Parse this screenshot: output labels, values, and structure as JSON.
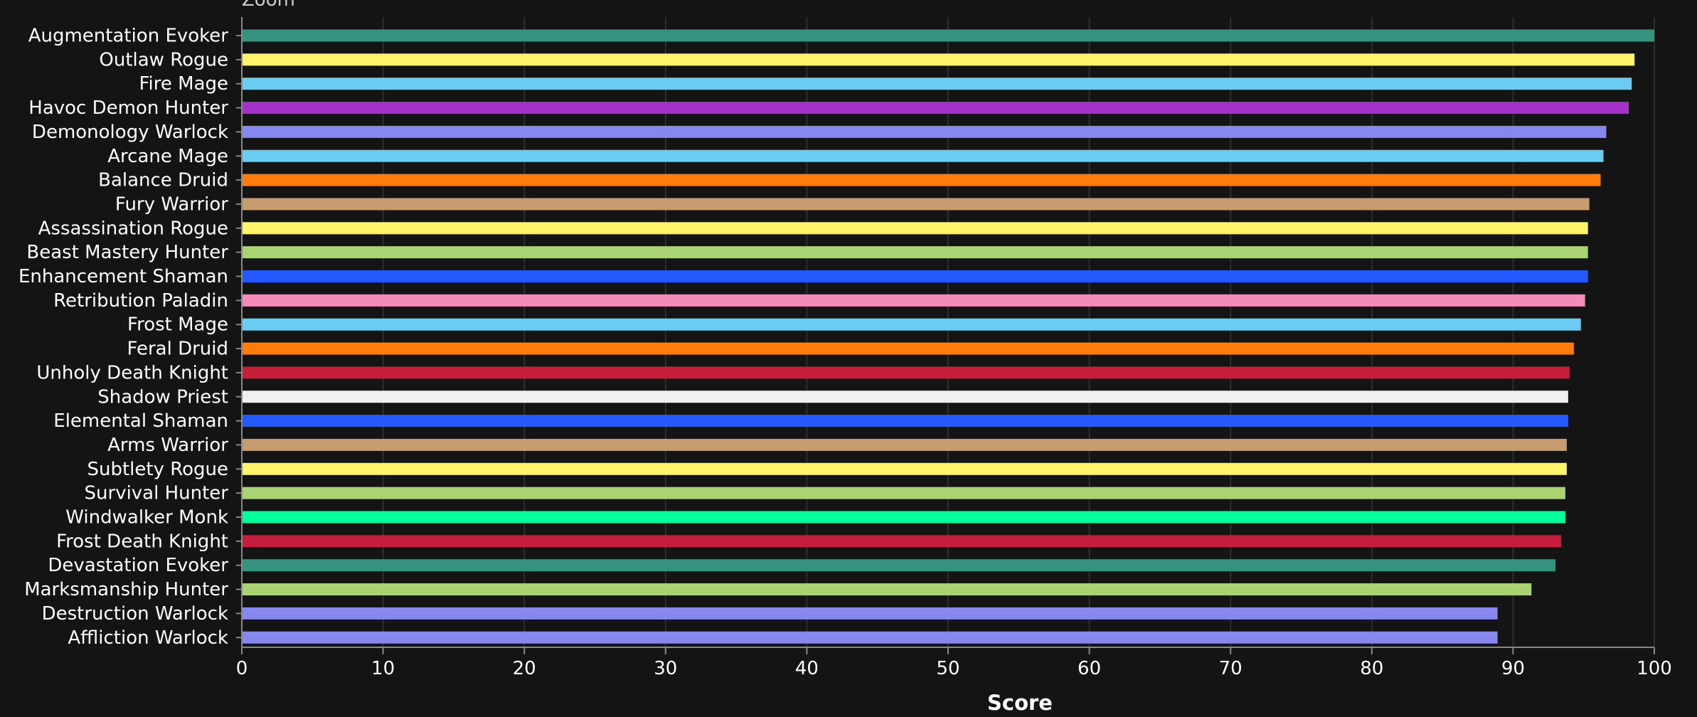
{
  "zoom_label": "Zoom",
  "chart_data": {
    "type": "bar",
    "orientation": "horizontal",
    "xlabel": "Score",
    "xlim": [
      0,
      100
    ],
    "xticks": [
      0,
      10,
      20,
      30,
      40,
      50,
      60,
      70,
      80,
      90,
      100
    ],
    "grid": true,
    "categories": [
      "Augmentation Evoker",
      "Outlaw Rogue",
      "Fire Mage",
      "Havoc Demon Hunter",
      "Demonology Warlock",
      "Arcane Mage",
      "Balance Druid",
      "Fury Warrior",
      "Assassination Rogue",
      "Beast Mastery Hunter",
      "Enhancement Shaman",
      "Retribution Paladin",
      "Frost Mage",
      "Feral Druid",
      "Unholy Death Knight",
      "Shadow Priest",
      "Elemental Shaman",
      "Arms Warrior",
      "Subtlety Rogue",
      "Survival Hunter",
      "Windwalker Monk",
      "Frost Death Knight",
      "Devastation Evoker",
      "Marksmanship Hunter",
      "Destruction Warlock",
      "Affliction Warlock"
    ],
    "values": [
      100.0,
      98.6,
      98.4,
      98.2,
      96.6,
      96.4,
      96.2,
      95.4,
      95.3,
      95.3,
      95.3,
      95.1,
      94.8,
      94.3,
      94.0,
      93.9,
      93.9,
      93.8,
      93.8,
      93.7,
      93.7,
      93.4,
      93.0,
      91.3,
      88.9,
      88.9
    ],
    "colors": [
      "#33937F",
      "#FFF468",
      "#69CCF0",
      "#A330C9",
      "#8788EE",
      "#69CCF0",
      "#FF7C0A",
      "#C69B6D",
      "#FFF468",
      "#AAD372",
      "#2359FF",
      "#F48CBA",
      "#69CCF0",
      "#FF7C0A",
      "#C41E3A",
      "#F0F0F0",
      "#2359FF",
      "#C69B6D",
      "#FFF468",
      "#AAD372",
      "#00FF98",
      "#C41E3A",
      "#33937F",
      "#AAD372",
      "#8788EE",
      "#8788EE"
    ]
  }
}
